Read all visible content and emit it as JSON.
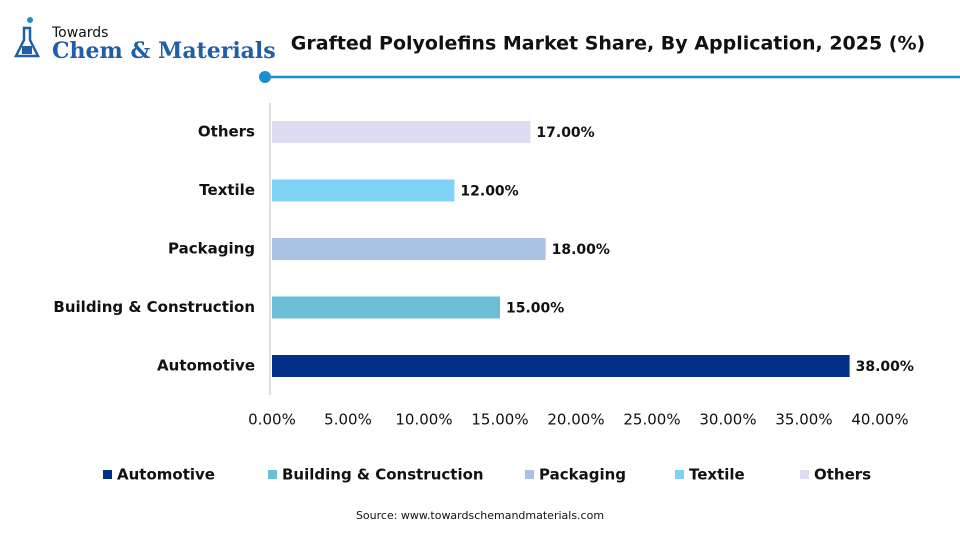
{
  "logo": {
    "top": "Towards",
    "name": "Chem & Materials"
  },
  "chart_data": {
    "type": "bar",
    "orientation": "horizontal",
    "title": "Grafted Polyolefins Market Share, By Application, 2025 (%)",
    "categories": [
      "Automotive",
      "Building & Construction",
      "Packaging",
      "Textile",
      "Others"
    ],
    "values": [
      38,
      15,
      18,
      12,
      17
    ],
    "value_labels": [
      "38.00%",
      "15.00%",
      "18.00%",
      "12.00%",
      "17.00%"
    ],
    "colors": [
      "#002f87",
      "#6cbdd6",
      "#a8c3e3",
      "#7fd2f6",
      "#dcdcf3"
    ],
    "xlim": [
      0,
      40
    ],
    "xticks": [
      {
        "value": 0,
        "label": "0.00%"
      },
      {
        "value": 5,
        "label": "5.00%"
      },
      {
        "value": 10,
        "label": "10.00%"
      },
      {
        "value": 15,
        "label": "15.00%"
      },
      {
        "value": 20,
        "label": "20.00%"
      },
      {
        "value": 25,
        "label": "25.00%"
      },
      {
        "value": 30,
        "label": "30.00%"
      },
      {
        "value": 35,
        "label": "35.00%"
      },
      {
        "value": 40,
        "label": "40.00%"
      }
    ],
    "grid": false,
    "legend": "bottom",
    "source": "Source: www.towardschemandmaterials.com"
  }
}
